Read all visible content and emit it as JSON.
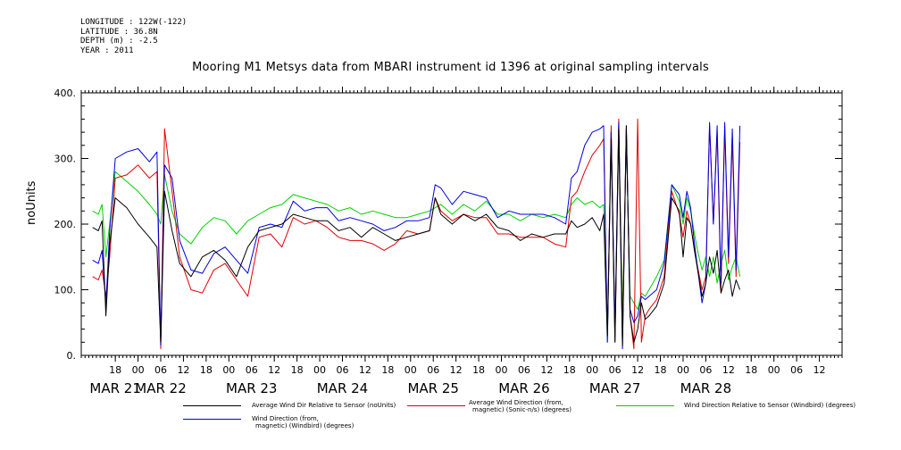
{
  "metadata_lines": [
    "LONGITUDE : 122W(-122)",
    "LATITUDE : 36.8N",
    "DEPTH (m) : -2.5",
    "YEAR : 2011"
  ],
  "chart_data": {
    "type": "line",
    "title": "Mooring M1 Metsys data from MBARI instrument id 1396 at original sampling intervals",
    "ylabel": "noUnits",
    "xlabel": "",
    "ylim": [
      0,
      400
    ],
    "y_ticks": [
      0,
      100,
      200,
      300,
      400
    ],
    "y_tick_labels": [
      "0.",
      "100.",
      "200.",
      "300.",
      "400."
    ],
    "x_range_hours": [
      -9,
      192
    ],
    "hour_ticks": [
      {
        "h": 0,
        "label": "18"
      },
      {
        "h": 6,
        "label": "00"
      },
      {
        "h": 12,
        "label": "06"
      },
      {
        "h": 18,
        "label": "12"
      },
      {
        "h": 24,
        "label": "18"
      },
      {
        "h": 30,
        "label": "00"
      },
      {
        "h": 36,
        "label": "06"
      },
      {
        "h": 42,
        "label": "12"
      },
      {
        "h": 48,
        "label": "18"
      },
      {
        "h": 54,
        "label": "00"
      },
      {
        "h": 60,
        "label": "06"
      },
      {
        "h": 66,
        "label": "12"
      },
      {
        "h": 72,
        "label": "18"
      },
      {
        "h": 78,
        "label": "00"
      },
      {
        "h": 84,
        "label": "06"
      },
      {
        "h": 90,
        "label": "12"
      },
      {
        "h": 96,
        "label": "18"
      },
      {
        "h": 102,
        "label": "00"
      },
      {
        "h": 108,
        "label": "06"
      },
      {
        "h": 114,
        "label": "12"
      },
      {
        "h": 120,
        "label": "18"
      },
      {
        "h": 126,
        "label": "00"
      },
      {
        "h": 132,
        "label": "06"
      },
      {
        "h": 138,
        "label": "12"
      },
      {
        "h": 144,
        "label": "18"
      },
      {
        "h": 150,
        "label": "00"
      },
      {
        "h": 156,
        "label": "06"
      },
      {
        "h": 162,
        "label": "12"
      },
      {
        "h": 168,
        "label": "18"
      },
      {
        "h": 174,
        "label": "00"
      },
      {
        "h": 180,
        "label": "06"
      },
      {
        "h": 186,
        "label": "12"
      }
    ],
    "date_labels": [
      {
        "h": 0,
        "label": "MAR 21"
      },
      {
        "h": 12,
        "label": "MAR 22"
      },
      {
        "h": 36,
        "label": "MAR 23"
      },
      {
        "h": 60,
        "label": "MAR 24"
      },
      {
        "h": 84,
        "label": "MAR 25"
      },
      {
        "h": 108,
        "label": "MAR 26"
      },
      {
        "h": 132,
        "label": "MAR 27"
      },
      {
        "h": 156,
        "label": "MAR 28"
      }
    ],
    "grid": false,
    "series": [
      {
        "name": "Average Wind Dir Relative to Sensor (noUnits)",
        "color": "#000000",
        "x": [
          -6,
          -4.5,
          -3.5,
          -2.5,
          -1.5,
          0,
          3,
          6,
          9,
          11,
          12,
          13,
          15,
          17,
          20,
          23,
          26,
          29,
          32,
          35,
          38,
          41,
          44,
          47,
          50,
          53,
          56,
          59,
          62,
          65,
          68,
          71,
          74,
          77,
          80,
          83,
          84.5,
          86,
          89,
          92,
          95,
          98,
          101,
          104,
          107,
          110,
          113,
          116,
          119,
          120.5,
          122,
          124,
          126,
          128,
          129,
          130,
          131,
          132,
          133,
          134,
          135,
          136,
          137,
          138,
          139,
          140,
          141,
          143,
          145,
          147,
          149,
          150,
          151,
          152,
          153,
          154,
          155,
          156,
          157,
          158,
          159,
          160,
          161,
          162,
          163,
          164,
          165
        ],
        "y": [
          195,
          190,
          205,
          60,
          170,
          240,
          225,
          200,
          180,
          165,
          20,
          250,
          190,
          140,
          120,
          150,
          160,
          145,
          120,
          165,
          190,
          195,
          200,
          215,
          210,
          205,
          205,
          190,
          195,
          180,
          195,
          185,
          175,
          180,
          185,
          190,
          240,
          215,
          200,
          215,
          205,
          215,
          195,
          190,
          175,
          185,
          180,
          185,
          185,
          205,
          195,
          200,
          210,
          190,
          215,
          30,
          330,
          20,
          345,
          15,
          350,
          60,
          20,
          40,
          80,
          55,
          60,
          75,
          110,
          240,
          220,
          150,
          210,
          200,
          160,
          125,
          90,
          110,
          150,
          125,
          160,
          95,
          115,
          130,
          90,
          115,
          100
        ]
      },
      {
        "name": "Average Wind Direction (from, magnetic) (Sonic-n/s) (degrees)",
        "color": "#e00000",
        "x": [
          -6,
          -4.5,
          -3.5,
          -2.5,
          -1.5,
          0,
          3,
          6,
          9,
          11,
          12,
          13,
          15,
          17,
          20,
          23,
          26,
          29,
          32,
          35,
          38,
          41,
          44,
          47,
          50,
          53,
          56,
          59,
          62,
          65,
          68,
          71,
          74,
          77,
          80,
          83,
          84.5,
          86,
          89,
          92,
          95,
          98,
          101,
          104,
          107,
          110,
          113,
          116,
          119,
          120.5,
          122,
          124,
          126,
          128,
          129,
          130,
          131,
          132,
          133,
          134,
          135,
          136,
          137,
          138,
          139,
          140,
          141,
          143,
          145,
          147,
          149,
          150,
          151,
          152,
          153,
          154,
          155,
          156,
          157,
          158,
          159,
          160,
          161,
          162,
          163,
          164,
          165
        ],
        "y": [
          120,
          115,
          130,
          90,
          150,
          270,
          275,
          290,
          270,
          280,
          10,
          345,
          250,
          150,
          100,
          95,
          130,
          140,
          115,
          90,
          180,
          185,
          165,
          210,
          200,
          205,
          195,
          180,
          175,
          175,
          170,
          160,
          170,
          190,
          185,
          190,
          240,
          220,
          205,
          215,
          210,
          210,
          185,
          185,
          180,
          180,
          180,
          170,
          165,
          240,
          250,
          280,
          305,
          320,
          330,
          30,
          350,
          20,
          360,
          30,
          350,
          60,
          10,
          360,
          20,
          60,
          70,
          85,
          120,
          250,
          215,
          180,
          220,
          200,
          160,
          130,
          100,
          120,
          350,
          200,
          340,
          100,
          345,
          140,
          330,
          120,
          325
        ]
      },
      {
        "name": "Wind Direction Relative to Sensor (Windbird) (degrees)",
        "color": "#00d000",
        "x": [
          -6,
          -4.5,
          -3.5,
          -2.5,
          -1.5,
          0,
          3,
          6,
          9,
          11,
          12,
          13,
          15,
          17,
          20,
          23,
          26,
          29,
          32,
          35,
          38,
          41,
          44,
          47,
          50,
          53,
          56,
          59,
          62,
          65,
          68,
          71,
          74,
          77,
          80,
          83,
          84.5,
          86,
          89,
          92,
          95,
          98,
          101,
          104,
          107,
          110,
          113,
          116,
          119,
          120.5,
          122,
          124,
          126,
          128,
          129,
          130,
          131,
          132,
          133,
          134,
          135,
          136,
          137,
          138,
          139,
          140,
          141,
          143,
          145,
          147,
          149,
          150,
          151,
          152,
          153,
          154,
          155,
          156,
          157,
          158,
          159,
          160,
          161,
          162,
          163,
          164,
          165
        ],
        "y": [
          220,
          215,
          230,
          150,
          200,
          280,
          265,
          250,
          230,
          215,
          200,
          275,
          220,
          185,
          170,
          195,
          210,
          205,
          185,
          205,
          215,
          225,
          230,
          245,
          240,
          235,
          230,
          220,
          225,
          215,
          220,
          215,
          210,
          210,
          215,
          220,
          225,
          230,
          215,
          230,
          220,
          235,
          215,
          215,
          205,
          215,
          210,
          215,
          210,
          230,
          240,
          230,
          235,
          225,
          230,
          20,
          340,
          30,
          350,
          60,
          330,
          90,
          80,
          70,
          95,
          90,
          100,
          120,
          145,
          260,
          235,
          200,
          240,
          220,
          185,
          155,
          130,
          150,
          120,
          150,
          110,
          140,
          160,
          115,
          135,
          150,
          120
        ]
      },
      {
        "name": "Wind Direction (from, magnetic) (Windbird) (degrees)",
        "color": "#0000e0",
        "x": [
          -6,
          -4.5,
          -3.5,
          -2.5,
          -1.5,
          0,
          3,
          6,
          9,
          11,
          12,
          13,
          15,
          17,
          20,
          23,
          26,
          29,
          32,
          35,
          38,
          41,
          44,
          47,
          50,
          53,
          56,
          59,
          62,
          65,
          68,
          71,
          74,
          77,
          80,
          83,
          84.5,
          86,
          89,
          92,
          95,
          98,
          101,
          104,
          107,
          110,
          113,
          116,
          119,
          120.5,
          122,
          124,
          126,
          128,
          129,
          130,
          131,
          132,
          133,
          134,
          135,
          136,
          137,
          138,
          139,
          140,
          141,
          143,
          145,
          147,
          149,
          150,
          151,
          152,
          153,
          154,
          155,
          156,
          157,
          158,
          159,
          160,
          161,
          162,
          163,
          164,
          165
        ],
        "y": [
          145,
          140,
          160,
          75,
          190,
          300,
          310,
          315,
          295,
          310,
          15,
          290,
          270,
          175,
          130,
          125,
          155,
          165,
          145,
          125,
          195,
          200,
          195,
          235,
          220,
          225,
          225,
          205,
          210,
          205,
          200,
          190,
          195,
          205,
          205,
          210,
          260,
          255,
          230,
          250,
          245,
          240,
          210,
          220,
          215,
          215,
          215,
          210,
          200,
          270,
          280,
          320,
          340,
          345,
          350,
          20,
          340,
          40,
          355,
          10,
          345,
          70,
          50,
          60,
          90,
          85,
          90,
          100,
          140,
          260,
          245,
          210,
          250,
          225,
          170,
          125,
          80,
          110,
          355,
          200,
          350,
          110,
          355,
          150,
          345,
          130,
          350
        ]
      }
    ]
  },
  "legend": [
    {
      "line1": "Average Wind Dir Relative to Sensor (noUnits)",
      "line2": ""
    },
    {
      "line1": "Average Wind Direction (from,",
      "line2": "magnetic) (Sonic-n/s) (degrees)"
    },
    {
      "line1": "Wind Direction Relative to Sensor (Windbird) (degrees)",
      "line2": ""
    },
    {
      "line1": "Wind Direction (from,",
      "line2": "magnetic) (Windbird) (degrees)"
    }
  ]
}
